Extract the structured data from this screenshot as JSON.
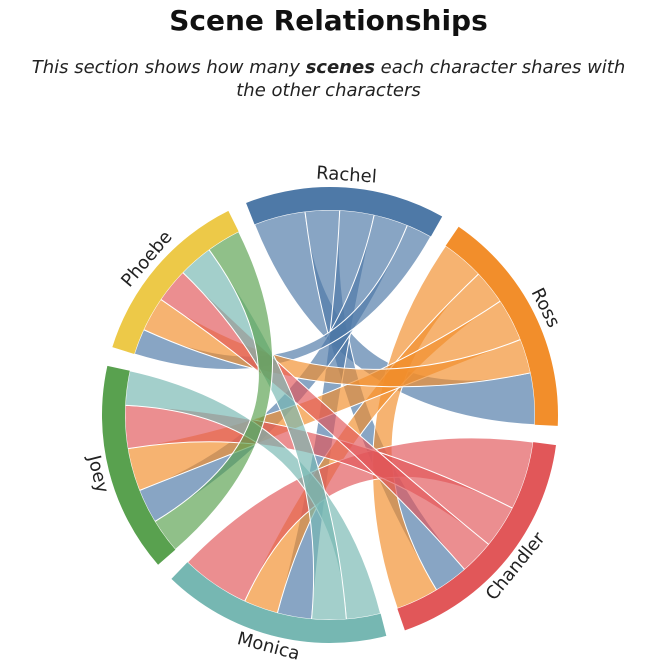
{
  "page": {
    "title": "Scene Relationships",
    "subtitle_before": "This section shows how many ",
    "subtitle_emph": "scenes",
    "subtitle_after": " each character shares with the other characters"
  },
  "chart_data": {
    "type": "chord",
    "nodes": [
      {
        "name": "Rachel",
        "color": "#4e79a7"
      },
      {
        "name": "Ross",
        "color": "#f28e2b"
      },
      {
        "name": "Chandler",
        "color": "#e15759"
      },
      {
        "name": "Monica",
        "color": "#76b7b2"
      },
      {
        "name": "Joey",
        "color": "#59a14f"
      },
      {
        "name": "Phoebe",
        "color": "#edc948"
      }
    ],
    "links": [
      {
        "source": "Rachel",
        "target": "Ross",
        "value": 6
      },
      {
        "source": "Rachel",
        "target": "Chandler",
        "value": 4
      },
      {
        "source": "Rachel",
        "target": "Monica",
        "value": 4
      },
      {
        "source": "Rachel",
        "target": "Joey",
        "value": 4
      },
      {
        "source": "Rachel",
        "target": "Phoebe",
        "value": 3
      },
      {
        "source": "Ross",
        "target": "Chandler",
        "value": 5
      },
      {
        "source": "Ross",
        "target": "Monica",
        "value": 4
      },
      {
        "source": "Ross",
        "target": "Joey",
        "value": 5
      },
      {
        "source": "Ross",
        "target": "Phoebe",
        "value": 4
      },
      {
        "source": "Chandler",
        "target": "Monica",
        "value": 8
      },
      {
        "source": "Chandler",
        "target": "Joey",
        "value": 5
      },
      {
        "source": "Chandler",
        "target": "Phoebe",
        "value": 4
      },
      {
        "source": "Monica",
        "target": "Joey",
        "value": 4
      },
      {
        "source": "Monica",
        "target": "Phoebe",
        "value": 4
      },
      {
        "source": "Joey",
        "target": "Phoebe",
        "value": 4
      }
    ]
  }
}
